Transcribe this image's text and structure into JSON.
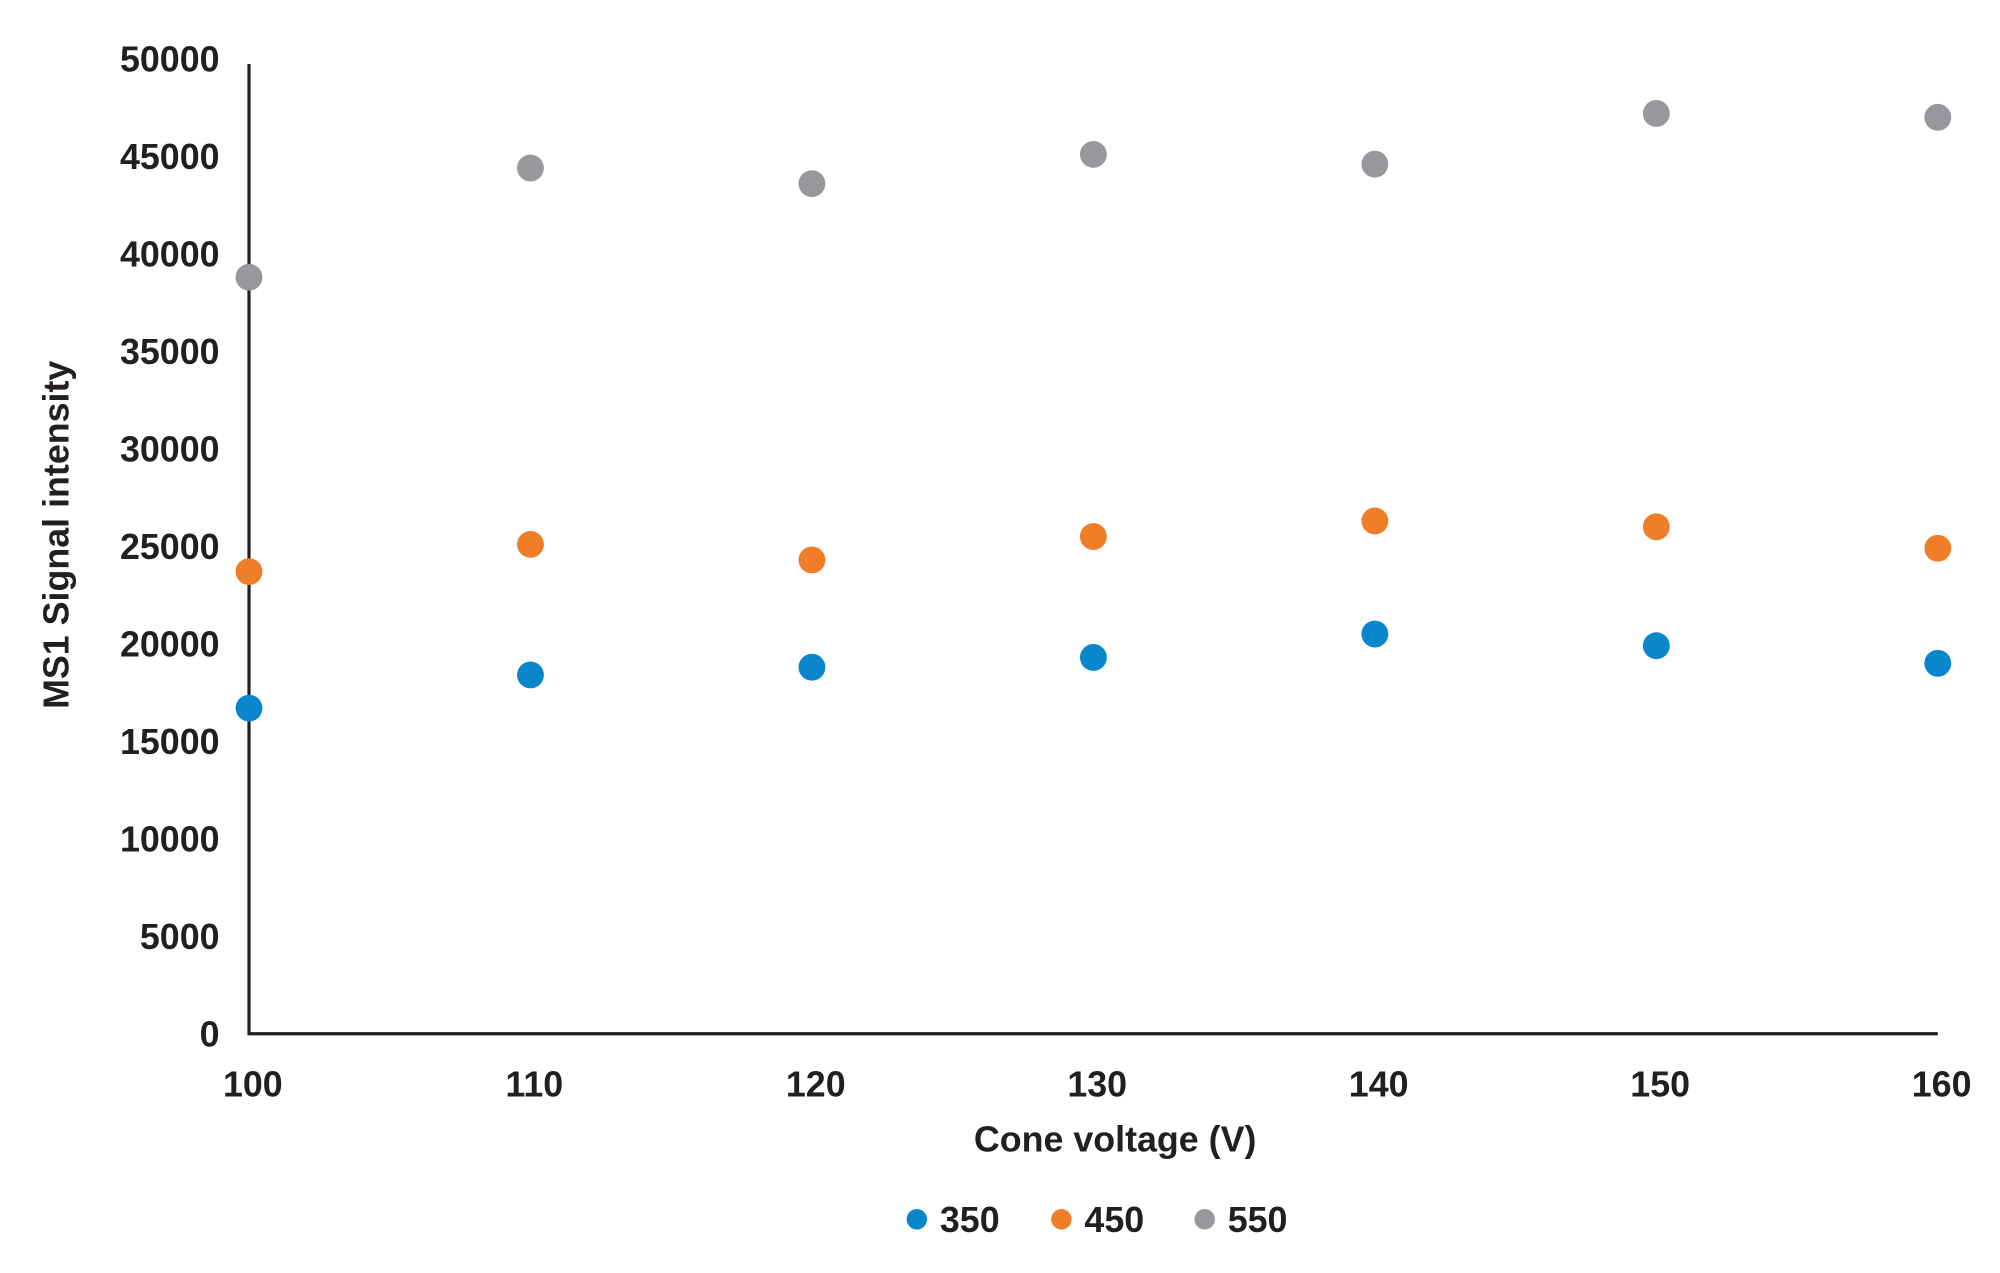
{
  "chart_data": {
    "type": "scatter",
    "title": "",
    "xlabel": "Cone voltage (V)",
    "ylabel": "MS1 Signal intensity",
    "x": [
      100,
      110,
      120,
      130,
      140,
      150,
      160
    ],
    "xlim": [
      100,
      160
    ],
    "ylim": [
      0,
      50000
    ],
    "x_ticks": [
      "100",
      "110",
      "120",
      "130",
      "140",
      "150",
      "160"
    ],
    "y_ticks": [
      "0",
      "5000",
      "10000",
      "15000",
      "20000",
      "25000",
      "30000",
      "35000",
      "40000",
      "45000",
      "50000"
    ],
    "grid": false,
    "legend_position": "bottom",
    "series": [
      {
        "name": "350",
        "color": "#0a86cd",
        "values": [
          16700,
          18400,
          18800,
          19300,
          20500,
          19900,
          19000
        ]
      },
      {
        "name": "450",
        "color": "#f07d27",
        "values": [
          23700,
          25100,
          24300,
          25500,
          26300,
          26000,
          24900
        ]
      },
      {
        "name": "550",
        "color": "#96989b",
        "values": [
          38800,
          44400,
          43600,
          45100,
          44600,
          47200,
          47000
        ]
      }
    ]
  }
}
